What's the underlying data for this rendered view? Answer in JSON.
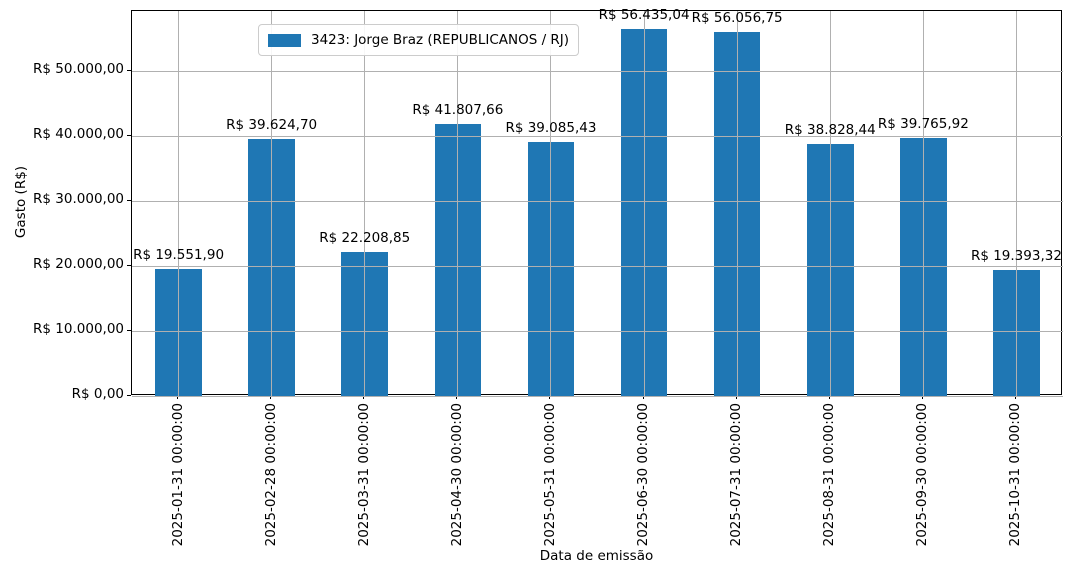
{
  "chart_data": {
    "type": "bar",
    "title": "",
    "xlabel": "Data de emissão",
    "ylabel": "Gasto (R$)",
    "legend": [
      "3423: Jorge Braz (REPUBLICANOS / RJ)"
    ],
    "legend_position": "upper left",
    "categories": [
      "2025-01-31 00:00:00",
      "2025-02-28 00:00:00",
      "2025-03-31 00:00:00",
      "2025-04-30 00:00:00",
      "2025-05-31 00:00:00",
      "2025-06-30 00:00:00",
      "2025-07-31 00:00:00",
      "2025-08-31 00:00:00",
      "2025-09-30 00:00:00",
      "2025-10-31 00:00:00"
    ],
    "values": [
      19551.9,
      39624.7,
      22208.85,
      41807.66,
      39085.43,
      56435.04,
      56056.75,
      38828.44,
      39765.92,
      19393.32
    ],
    "value_labels": [
      "R$ 19.551,90",
      "R$ 39.624,70",
      "R$ 22.208,85",
      "R$ 41.807,66",
      "R$ 39.085,43",
      "R$ 56.435,04",
      "R$ 56.056,75",
      "R$ 38.828,44",
      "R$ 39.765,92",
      "R$ 19.393,32"
    ],
    "y_tick_values": [
      0,
      10000,
      20000,
      30000,
      40000,
      50000
    ],
    "y_tick_labels": [
      "R$ 0,00",
      "R$ 10.000,00",
      "R$ 20.000,00",
      "R$ 30.000,00",
      "R$ 40.000,00",
      "R$ 50.000,00"
    ],
    "ylim": [
      0,
      59257
    ],
    "bar_width_fraction": 0.5,
    "grid": true,
    "grid_on_top": true,
    "colors": {
      "bar": "#1f77b4",
      "grid": "#b0b0b0",
      "spine": "#000000",
      "text": "#000000",
      "legend_border": "#cccccc",
      "background": "#ffffff"
    }
  }
}
